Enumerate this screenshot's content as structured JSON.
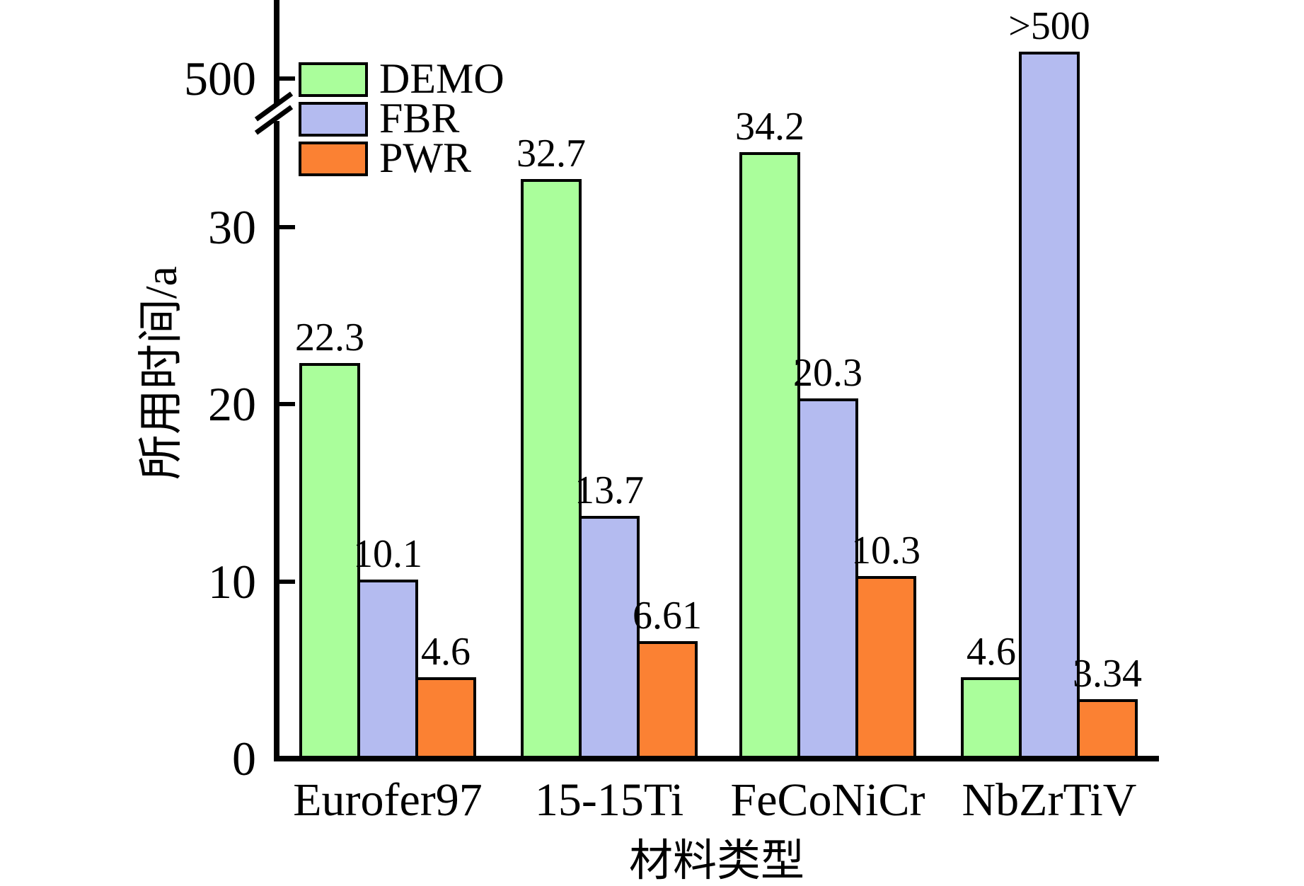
{
  "chart_data": {
    "type": "bar",
    "title": "",
    "xlabel": "材料类型",
    "ylabel": "所用时间/a",
    "categories": [
      "Eurofer97",
      "15-15Ti",
      "FeCoNiCr",
      "NbZrTiV"
    ],
    "series": [
      {
        "name": "DEMO",
        "color": "#AAFE9B",
        "values": [
          22.3,
          32.7,
          34.2,
          4.6
        ],
        "labels": [
          "22.3",
          "32.7",
          "34.2",
          "4.6"
        ]
      },
      {
        "name": "FBR",
        "color": "#B4BBF0",
        "values": [
          10.1,
          13.7,
          20.3,
          500
        ],
        "labels": [
          "10.1",
          "13.7",
          "20.3",
          ">500"
        ]
      },
      {
        "name": "PWR",
        "color": "#FB8133",
        "values": [
          4.6,
          6.61,
          10.3,
          3.34
        ],
        "labels": [
          "4.6",
          "6.61",
          "10.3",
          "3.34"
        ]
      }
    ],
    "y_ticks": [
      {
        "label": "0",
        "value": 0
      },
      {
        "label": "10",
        "value": 10
      },
      {
        "label": "20",
        "value": 20
      },
      {
        "label": "30",
        "value": 30
      }
    ],
    "y_break_tick": {
      "label": "500",
      "value": 500
    },
    "axis_break": {
      "present": true,
      "between_low": 35,
      "between_high": 500
    },
    "ylim_linear_part": [
      0,
      35
    ],
    "legend_position": "top-left-inside",
    "grid": false,
    "axis_color": "#000000",
    "text_color": "#000000"
  }
}
